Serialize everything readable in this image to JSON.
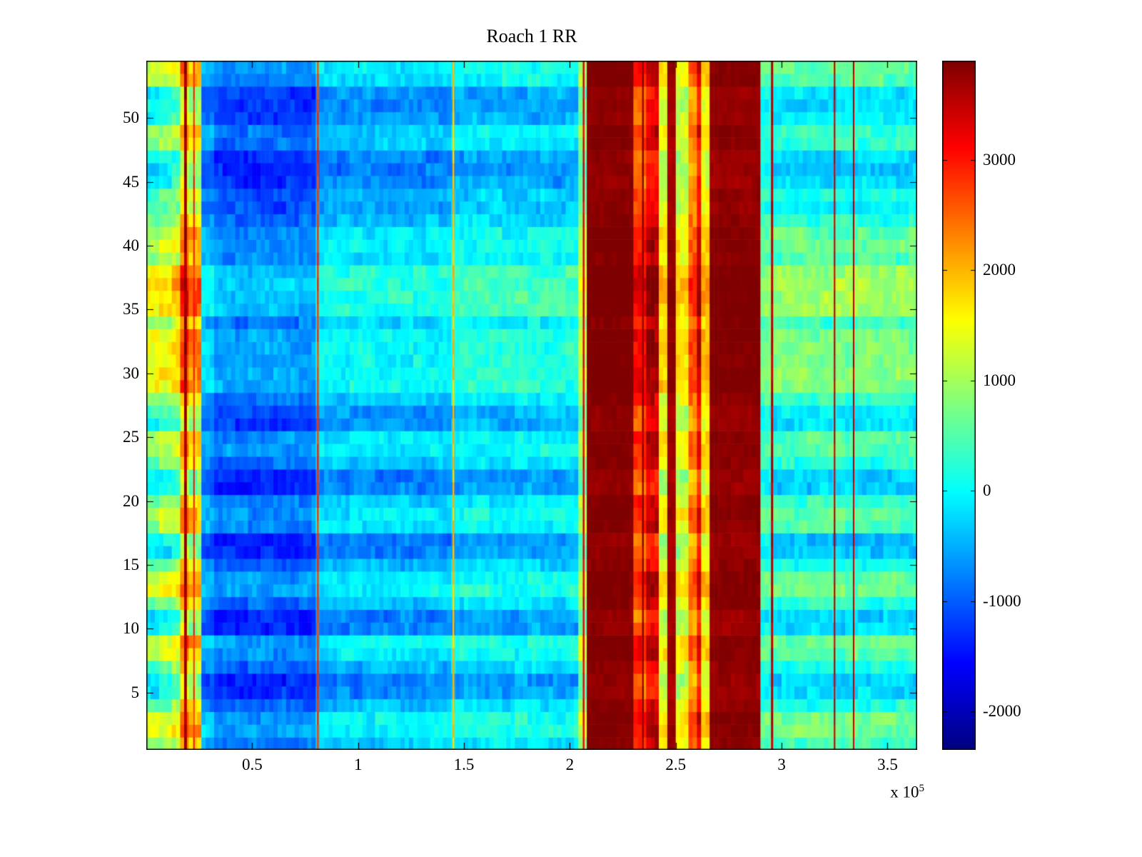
{
  "title": "Roach 1 RR",
  "chart_data": {
    "type": "heatmap",
    "title": "Roach 1 RR",
    "xlabel": "",
    "ylabel": "",
    "x_scale_prefix": "x 10",
    "x_scale_exp": "5",
    "x_scale_label": "x 10^5",
    "colormap": "jet",
    "clim": [
      -2350,
      3900
    ],
    "x_range_1e5": [
      0,
      3.64
    ],
    "y_range": [
      0.5,
      54.5
    ],
    "x_ticks": {
      "values": [
        0.5,
        1,
        1.5,
        2,
        2.5,
        3,
        3.5
      ],
      "labels": [
        "0.5",
        "1",
        "1.5",
        "2",
        "2.5",
        "3",
        "3.5"
      ]
    },
    "y_ticks": {
      "values": [
        5,
        10,
        15,
        20,
        25,
        30,
        35,
        40,
        45,
        50
      ],
      "labels": [
        "5",
        "10",
        "15",
        "20",
        "25",
        "30",
        "35",
        "40",
        "45",
        "50"
      ]
    },
    "colorbar_ticks": {
      "values": [
        3000,
        2000,
        1000,
        0,
        -1000,
        -2000
      ],
      "labels": [
        "3000",
        "2000",
        "1000",
        "0",
        "-1000",
        "-2000"
      ]
    },
    "grid": {
      "n_rows": 54,
      "n_cols": 182,
      "column_segments_1e5": [
        [
          0.0,
          0.06,
          500
        ],
        [
          0.06,
          0.12,
          650
        ],
        [
          0.12,
          0.17,
          850
        ],
        [
          0.17,
          0.21,
          1900
        ],
        [
          0.21,
          0.26,
          1400
        ],
        [
          0.26,
          0.32,
          -700
        ],
        [
          0.32,
          0.8,
          -1000
        ],
        [
          0.8,
          1.45,
          -450
        ],
        [
          1.45,
          2.05,
          -250
        ],
        [
          2.05,
          2.08,
          800
        ],
        [
          2.08,
          2.31,
          3850
        ],
        [
          2.31,
          2.36,
          2700
        ],
        [
          2.36,
          2.42,
          3300
        ],
        [
          2.42,
          2.46,
          1400
        ],
        [
          2.46,
          2.5,
          3700
        ],
        [
          2.5,
          2.56,
          1300
        ],
        [
          2.56,
          2.6,
          2300
        ],
        [
          2.6,
          2.63,
          3100
        ],
        [
          2.63,
          2.66,
          1600
        ],
        [
          2.66,
          2.9,
          3800
        ],
        [
          2.9,
          2.97,
          300
        ],
        [
          2.97,
          3.64,
          150
        ]
      ],
      "row_offsets": [
        300,
        800,
        700,
        100,
        -500,
        -600,
        0,
        600,
        700,
        -550,
        -650,
        100,
        750,
        650,
        0,
        -700,
        -750,
        500,
        600,
        300,
        -600,
        -650,
        100,
        550,
        500,
        -400,
        -350,
        200,
        900,
        950,
        900,
        850,
        800,
        300,
        1100,
        1200,
        1250,
        1100,
        400,
        700,
        600,
        100,
        -200,
        -100,
        -550,
        -650,
        -600,
        200,
        300,
        -400,
        -500,
        -450,
        500,
        600
      ],
      "vertical_lines_1e5": [
        {
          "x": 0.185,
          "value": 3700,
          "width": 0.013
        },
        {
          "x": 0.225,
          "value": 2900,
          "width": 0.006
        },
        {
          "x": 0.81,
          "value": 2800,
          "width": 0.008
        },
        {
          "x": 1.45,
          "value": 1900,
          "width": 0.008
        },
        {
          "x": 2.065,
          "value": 3300,
          "width": 0.008
        },
        {
          "x": 2.345,
          "value": 3800,
          "width": 0.008
        },
        {
          "x": 2.955,
          "value": 3600,
          "width": 0.01
        },
        {
          "x": 3.25,
          "value": 3500,
          "width": 0.007
        },
        {
          "x": 3.34,
          "value": 3500,
          "width": 0.007
        }
      ],
      "noise_amp": 350,
      "noise_amp_left": 420,
      "noise_amp_saturated": 140,
      "seed": 42
    },
    "colors": {
      "background": "#ffffff",
      "axis": "#000000",
      "text": "#000000"
    }
  }
}
